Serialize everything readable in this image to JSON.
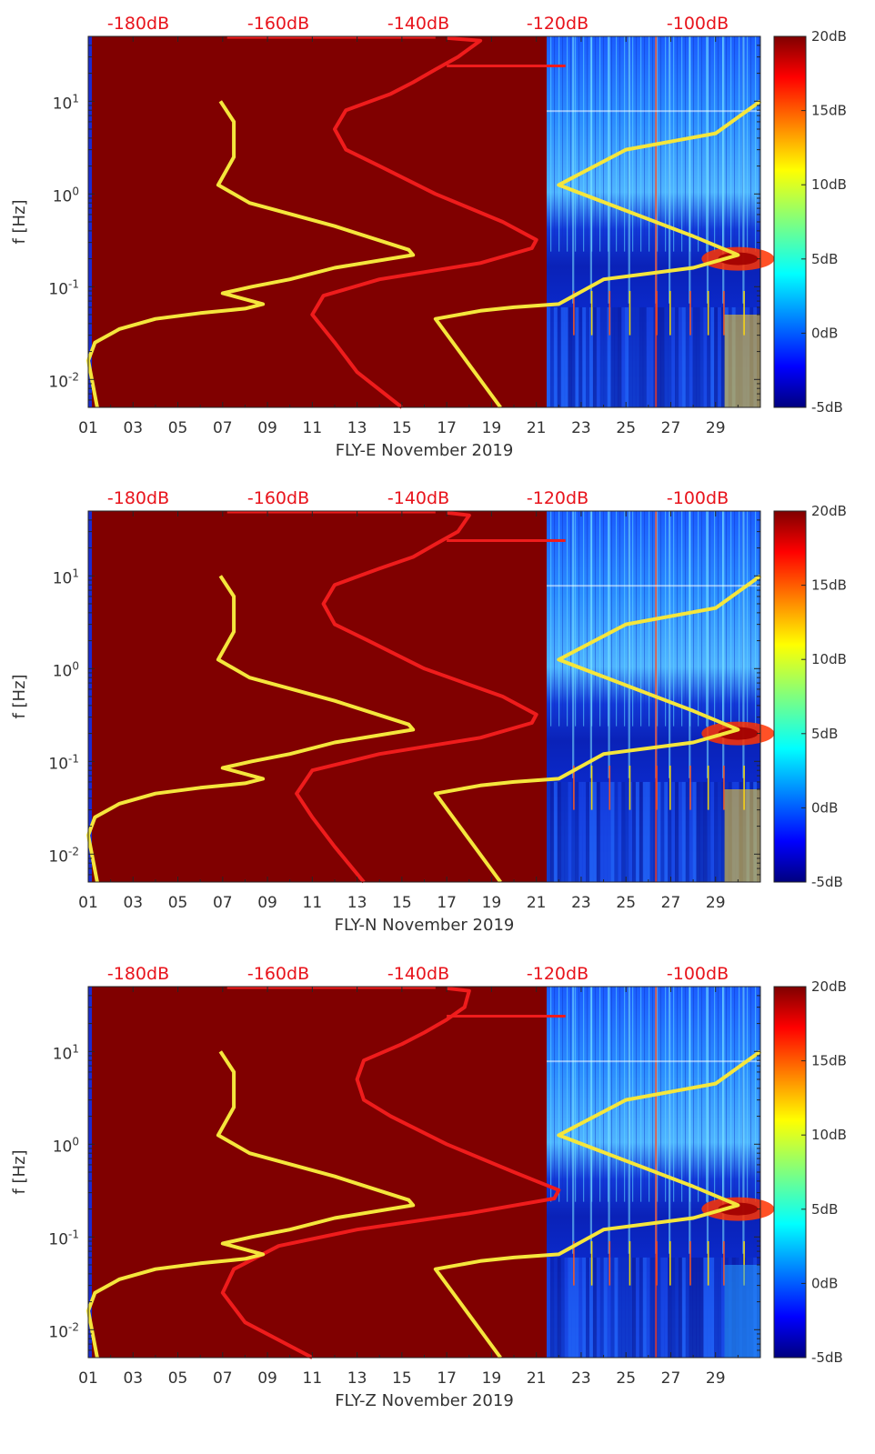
{
  "figure": {
    "colorbar": {
      "labels": [
        "20dB",
        "15dB",
        "10dB",
        "5dB",
        "0dB",
        "-5dB"
      ],
      "values": [
        20,
        15,
        10,
        5,
        0,
        -5
      ]
    },
    "colors": {
      "background_fill": "#800000",
      "noise_model_lines": "#f5e63c",
      "psd_curve": "#ef1c1c",
      "top_axis_text": "#e8141c",
      "axis_text": "#333333"
    }
  },
  "chart_data": [
    {
      "type": "heatmap",
      "title": "",
      "xlabel": "FLY-E November 2019",
      "ylabel": "f [Hz]",
      "x_tick_labels": [
        "01",
        "03",
        "05",
        "07",
        "09",
        "11",
        "13",
        "15",
        "17",
        "19",
        "21",
        "23",
        "25",
        "27",
        "29"
      ],
      "y_tick_labels": [
        "10^1",
        "10^0",
        "10^-1",
        "10^-2"
      ],
      "top_axis_labels": [
        "-180dB",
        "-160dB",
        "-140dB",
        "-120dB",
        "-100dB"
      ],
      "ylim": [
        0.005,
        50
      ],
      "yscale": "log",
      "colorbar_range": [
        -5,
        20
      ],
      "overlays": {
        "noise_model_day": [
          {
            "x": 1.4,
            "f": 0.005
          },
          {
            "x": 1.0,
            "f": 0.016
          },
          {
            "x": 1.3,
            "f": 0.025
          },
          {
            "x": 2.4,
            "f": 0.035
          },
          {
            "x": 4.0,
            "f": 0.045
          },
          {
            "x": 6.0,
            "f": 0.052
          },
          {
            "x": 8.0,
            "f": 0.058
          },
          {
            "x": 8.8,
            "f": 0.065
          },
          {
            "x": 7.0,
            "f": 0.085
          },
          {
            "x": 8.3,
            "f": 0.1
          },
          {
            "x": 10.0,
            "f": 0.12
          },
          {
            "x": 12.0,
            "f": 0.16
          },
          {
            "x": 15.5,
            "f": 0.22
          },
          {
            "x": 15.3,
            "f": 0.25
          },
          {
            "x": 12.0,
            "f": 0.45
          },
          {
            "x": 8.2,
            "f": 0.8
          },
          {
            "x": 6.8,
            "f": 1.25
          },
          {
            "x": 7.5,
            "f": 2.5
          },
          {
            "x": 7.5,
            "f": 6.0
          },
          {
            "x": 6.9,
            "f": 10.0
          }
        ],
        "noise_model_night": [
          {
            "x": 19.4,
            "f": 0.005
          },
          {
            "x": 16.5,
            "f": 0.045
          },
          {
            "x": 18.5,
            "f": 0.055
          },
          {
            "x": 20.0,
            "f": 0.06
          },
          {
            "x": 22.0,
            "f": 0.065
          },
          {
            "x": 24.0,
            "f": 0.12
          },
          {
            "x": 28.0,
            "f": 0.16
          },
          {
            "x": 30.0,
            "f": 0.22
          },
          {
            "x": 28.0,
            "f": 0.35
          },
          {
            "x": 22.0,
            "f": 1.25
          },
          {
            "x": 25.0,
            "f": 3.0
          },
          {
            "x": 29.0,
            "f": 4.5
          },
          {
            "x": 31.0,
            "f": 10.0
          }
        ],
        "psd_curve": [
          {
            "x": 15.0,
            "f": 0.005
          },
          {
            "x": 13.0,
            "f": 0.012
          },
          {
            "x": 12.0,
            "f": 0.025
          },
          {
            "x": 11.0,
            "f": 0.05
          },
          {
            "x": 11.5,
            "f": 0.08
          },
          {
            "x": 14.0,
            "f": 0.12
          },
          {
            "x": 18.5,
            "f": 0.18
          },
          {
            "x": 20.8,
            "f": 0.26
          },
          {
            "x": 21.0,
            "f": 0.32
          },
          {
            "x": 19.5,
            "f": 0.5
          },
          {
            "x": 16.5,
            "f": 1.0
          },
          {
            "x": 14.0,
            "f": 2.0
          },
          {
            "x": 12.5,
            "f": 3.0
          },
          {
            "x": 12.0,
            "f": 5.0
          },
          {
            "x": 12.5,
            "f": 8.0
          },
          {
            "x": 14.5,
            "f": 12.0
          },
          {
            "x": 15.5,
            "f": 16.0
          },
          {
            "x": 16.5,
            "f": 22.0
          },
          {
            "x": 17.5,
            "f": 30.0
          },
          {
            "x": 18.5,
            "f": 45.0
          },
          {
            "x": 17.0,
            "f": 48.0
          }
        ]
      }
    },
    {
      "type": "heatmap",
      "title": "",
      "xlabel": "FLY-N November 2019",
      "ylabel": "f [Hz]",
      "x_tick_labels": [
        "01",
        "03",
        "05",
        "07",
        "09",
        "11",
        "13",
        "15",
        "17",
        "19",
        "21",
        "23",
        "25",
        "27",
        "29"
      ],
      "y_tick_labels": [
        "10^1",
        "10^0",
        "10^-1",
        "10^-2"
      ],
      "top_axis_labels": [
        "-180dB",
        "-160dB",
        "-140dB",
        "-120dB",
        "-100dB"
      ],
      "ylim": [
        0.005,
        50
      ],
      "yscale": "log",
      "colorbar_range": [
        -5,
        20
      ],
      "overlays": {
        "noise_model_day": [
          {
            "x": 1.4,
            "f": 0.005
          },
          {
            "x": 1.0,
            "f": 0.016
          },
          {
            "x": 1.3,
            "f": 0.025
          },
          {
            "x": 2.4,
            "f": 0.035
          },
          {
            "x": 4.0,
            "f": 0.045
          },
          {
            "x": 6.0,
            "f": 0.052
          },
          {
            "x": 8.0,
            "f": 0.058
          },
          {
            "x": 8.8,
            "f": 0.065
          },
          {
            "x": 7.0,
            "f": 0.085
          },
          {
            "x": 8.3,
            "f": 0.1
          },
          {
            "x": 10.0,
            "f": 0.12
          },
          {
            "x": 12.0,
            "f": 0.16
          },
          {
            "x": 15.5,
            "f": 0.22
          },
          {
            "x": 15.3,
            "f": 0.25
          },
          {
            "x": 12.0,
            "f": 0.45
          },
          {
            "x": 8.2,
            "f": 0.8
          },
          {
            "x": 6.8,
            "f": 1.25
          },
          {
            "x": 7.5,
            "f": 2.5
          },
          {
            "x": 7.5,
            "f": 6.0
          },
          {
            "x": 6.9,
            "f": 10.0
          }
        ],
        "noise_model_night": [
          {
            "x": 19.4,
            "f": 0.005
          },
          {
            "x": 16.5,
            "f": 0.045
          },
          {
            "x": 18.5,
            "f": 0.055
          },
          {
            "x": 20.0,
            "f": 0.06
          },
          {
            "x": 22.0,
            "f": 0.065
          },
          {
            "x": 24.0,
            "f": 0.12
          },
          {
            "x": 28.0,
            "f": 0.16
          },
          {
            "x": 30.0,
            "f": 0.22
          },
          {
            "x": 28.0,
            "f": 0.35
          },
          {
            "x": 22.0,
            "f": 1.25
          },
          {
            "x": 25.0,
            "f": 3.0
          },
          {
            "x": 29.0,
            "f": 4.5
          },
          {
            "x": 31.0,
            "f": 10.0
          }
        ],
        "psd_curve": [
          {
            "x": 13.3,
            "f": 0.005
          },
          {
            "x": 12.0,
            "f": 0.012
          },
          {
            "x": 11.0,
            "f": 0.025
          },
          {
            "x": 10.3,
            "f": 0.045
          },
          {
            "x": 11.0,
            "f": 0.08
          },
          {
            "x": 14.0,
            "f": 0.12
          },
          {
            "x": 18.5,
            "f": 0.18
          },
          {
            "x": 20.8,
            "f": 0.26
          },
          {
            "x": 21.0,
            "f": 0.32
          },
          {
            "x": 19.5,
            "f": 0.5
          },
          {
            "x": 16.0,
            "f": 1.0
          },
          {
            "x": 13.5,
            "f": 2.0
          },
          {
            "x": 12.0,
            "f": 3.0
          },
          {
            "x": 11.5,
            "f": 5.0
          },
          {
            "x": 12.0,
            "f": 8.0
          },
          {
            "x": 14.0,
            "f": 12.0
          },
          {
            "x": 15.5,
            "f": 16.0
          },
          {
            "x": 16.5,
            "f": 22.0
          },
          {
            "x": 17.5,
            "f": 30.0
          },
          {
            "x": 18.0,
            "f": 45.0
          },
          {
            "x": 17.0,
            "f": 48.0
          }
        ]
      }
    },
    {
      "type": "heatmap",
      "title": "",
      "xlabel": "FLY-Z November 2019",
      "ylabel": "f [Hz]",
      "x_tick_labels": [
        "01",
        "03",
        "05",
        "07",
        "09",
        "11",
        "13",
        "15",
        "17",
        "19",
        "21",
        "23",
        "25",
        "27",
        "29"
      ],
      "y_tick_labels": [
        "10^1",
        "10^0",
        "10^-1",
        "10^-2"
      ],
      "top_axis_labels": [
        "-180dB",
        "-160dB",
        "-140dB",
        "-120dB",
        "-100dB"
      ],
      "ylim": [
        0.005,
        50
      ],
      "yscale": "log",
      "colorbar_range": [
        -5,
        20
      ],
      "overlays": {
        "noise_model_day": [
          {
            "x": 1.4,
            "f": 0.005
          },
          {
            "x": 1.0,
            "f": 0.016
          },
          {
            "x": 1.3,
            "f": 0.025
          },
          {
            "x": 2.4,
            "f": 0.035
          },
          {
            "x": 4.0,
            "f": 0.045
          },
          {
            "x": 6.0,
            "f": 0.052
          },
          {
            "x": 8.0,
            "f": 0.058
          },
          {
            "x": 8.8,
            "f": 0.065
          },
          {
            "x": 7.0,
            "f": 0.085
          },
          {
            "x": 8.3,
            "f": 0.1
          },
          {
            "x": 10.0,
            "f": 0.12
          },
          {
            "x": 12.0,
            "f": 0.16
          },
          {
            "x": 15.5,
            "f": 0.22
          },
          {
            "x": 15.3,
            "f": 0.25
          },
          {
            "x": 12.0,
            "f": 0.45
          },
          {
            "x": 8.2,
            "f": 0.8
          },
          {
            "x": 6.8,
            "f": 1.25
          },
          {
            "x": 7.5,
            "f": 2.5
          },
          {
            "x": 7.5,
            "f": 6.0
          },
          {
            "x": 6.9,
            "f": 10.0
          }
        ],
        "noise_model_night": [
          {
            "x": 19.4,
            "f": 0.005
          },
          {
            "x": 16.5,
            "f": 0.045
          },
          {
            "x": 18.5,
            "f": 0.055
          },
          {
            "x": 20.0,
            "f": 0.06
          },
          {
            "x": 22.0,
            "f": 0.065
          },
          {
            "x": 24.0,
            "f": 0.12
          },
          {
            "x": 28.0,
            "f": 0.16
          },
          {
            "x": 30.0,
            "f": 0.22
          },
          {
            "x": 28.0,
            "f": 0.35
          },
          {
            "x": 22.0,
            "f": 1.25
          },
          {
            "x": 25.0,
            "f": 3.0
          },
          {
            "x": 29.0,
            "f": 4.5
          },
          {
            "x": 31.0,
            "f": 10.0
          }
        ],
        "psd_curve": [
          {
            "x": 11.0,
            "f": 0.005
          },
          {
            "x": 8.0,
            "f": 0.012
          },
          {
            "x": 7.0,
            "f": 0.025
          },
          {
            "x": 7.5,
            "f": 0.045
          },
          {
            "x": 9.5,
            "f": 0.08
          },
          {
            "x": 13.0,
            "f": 0.12
          },
          {
            "x": 18.0,
            "f": 0.18
          },
          {
            "x": 21.8,
            "f": 0.26
          },
          {
            "x": 22.0,
            "f": 0.32
          },
          {
            "x": 20.0,
            "f": 0.5
          },
          {
            "x": 17.0,
            "f": 1.0
          },
          {
            "x": 14.5,
            "f": 2.0
          },
          {
            "x": 13.3,
            "f": 3.0
          },
          {
            "x": 13.0,
            "f": 5.0
          },
          {
            "x": 13.3,
            "f": 8.0
          },
          {
            "x": 15.0,
            "f": 12.0
          },
          {
            "x": 16.0,
            "f": 16.0
          },
          {
            "x": 17.0,
            "f": 22.0
          },
          {
            "x": 17.8,
            "f": 30.0
          },
          {
            "x": 18.0,
            "f": 45.0
          },
          {
            "x": 17.0,
            "f": 48.0
          }
        ]
      }
    }
  ]
}
